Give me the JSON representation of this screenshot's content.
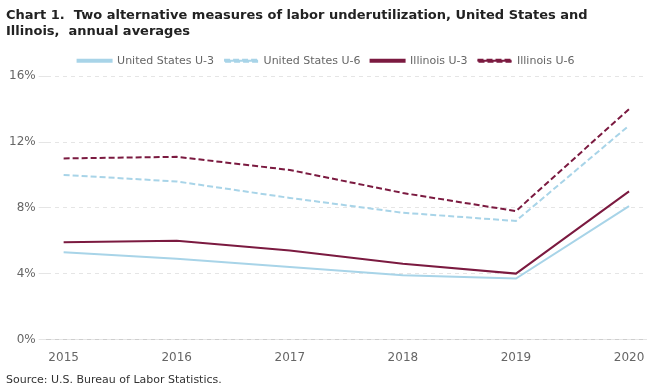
{
  "chart_data": {
    "type": "line",
    "title": "Chart 1.  Two alternative measures of labor underutilization, United States and\nIllinois,  annual averages",
    "annotations": [
      "Source: U.S. Bureau of Labor Statistics."
    ],
    "x": [
      2015,
      2016,
      2017,
      2018,
      2019,
      2020
    ],
    "series": [
      {
        "name": "United States U-3",
        "color": "#a8d4e8",
        "line_style": "solid",
        "values": [
          5.3,
          4.9,
          4.4,
          3.9,
          3.7,
          8.1
        ]
      },
      {
        "name": "United States U-6",
        "color": "#a8d4e8",
        "line_style": "dashed",
        "values": [
          10.0,
          9.6,
          8.6,
          7.7,
          7.2,
          13.0
        ]
      },
      {
        "name": "Illinois U-3",
        "color": "#7b1a40",
        "line_style": "solid",
        "values": [
          5.9,
          6.0,
          5.4,
          4.6,
          4.0,
          9.0
        ]
      },
      {
        "name": "Illinois U-6",
        "color": "#7b1a40",
        "line_style": "dashed",
        "values": [
          11.0,
          11.1,
          10.3,
          8.9,
          7.8,
          14.0
        ]
      }
    ],
    "xlim": [
      2014.85,
      2020.15
    ],
    "xticks": [
      2015,
      2016,
      2017,
      2018,
      2019,
      2020
    ],
    "ylim": [
      0,
      16
    ],
    "yticks": [
      {
        "value": 0,
        "label": "0%"
      },
      {
        "value": 4,
        "label": "4%"
      },
      {
        "value": 8,
        "label": "8%"
      },
      {
        "value": 12,
        "label": "12%"
      },
      {
        "value": 16,
        "label": "16%"
      }
    ],
    "grid": "y",
    "legend": "top"
  }
}
